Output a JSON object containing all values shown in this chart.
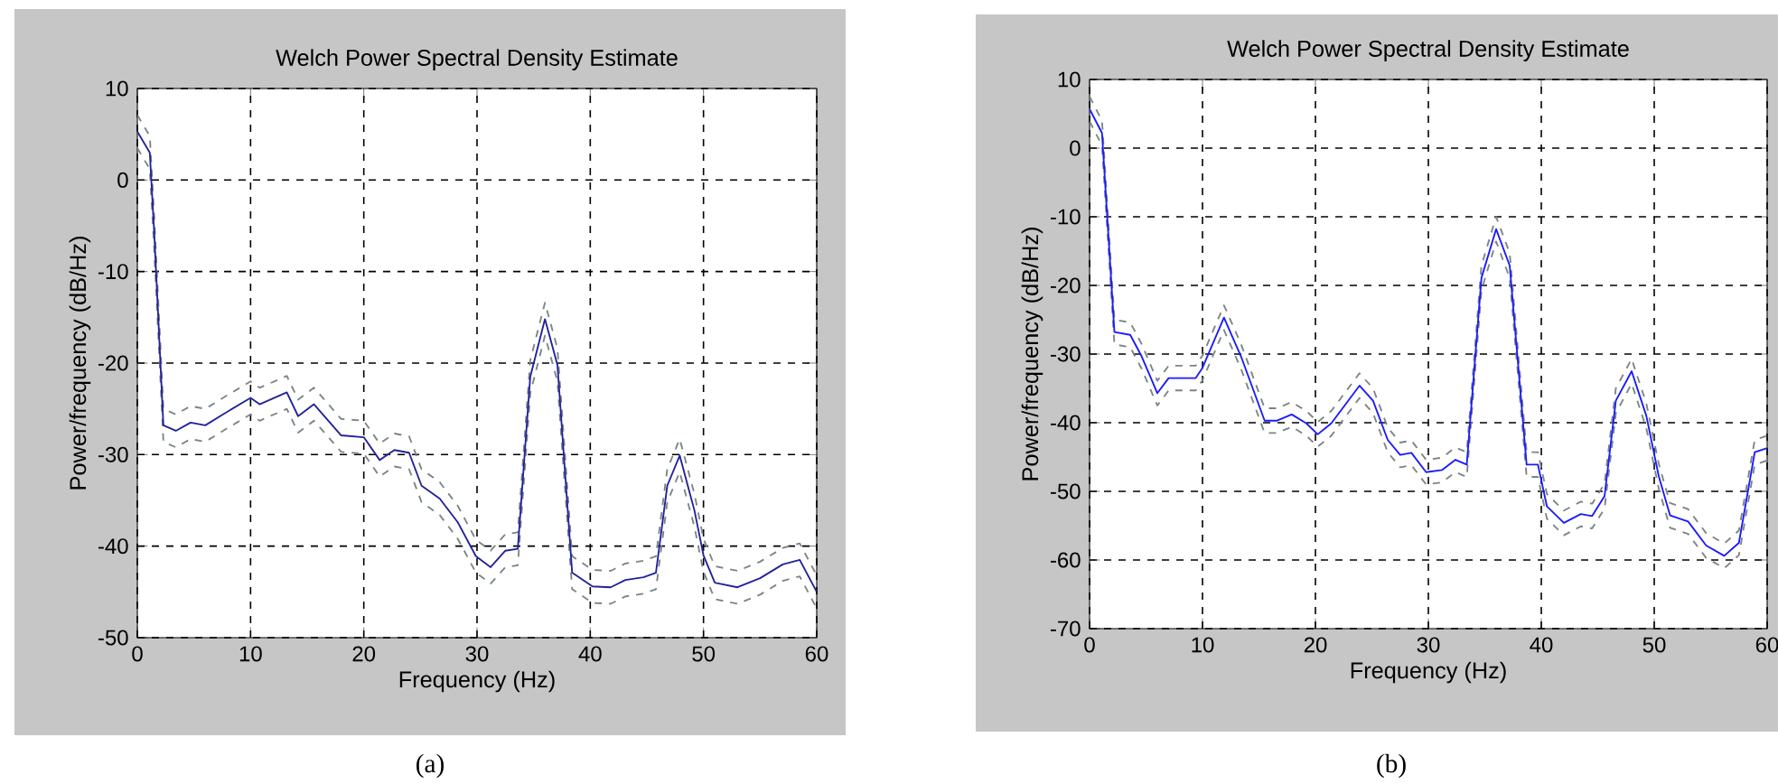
{
  "chart_data": [
    {
      "type": "line",
      "title": "Welch Power Spectral Density Estimate",
      "xlabel": "Frequency (Hz)",
      "ylabel": "Power/frequency (dB/Hz)",
      "annotations": [
        "(a)"
      ],
      "xlim": [
        0,
        60
      ],
      "ylim": [
        -50,
        10
      ],
      "xticks": [
        0,
        10,
        20,
        30,
        40,
        50,
        60
      ],
      "yticks": [
        -50,
        -40,
        -30,
        -20,
        -10,
        0,
        10
      ],
      "grid": true,
      "marker": "none",
      "x": [
        0,
        1.1,
        1.5,
        2.3,
        3.4,
        4.7,
        6,
        7.7,
        10,
        10.8,
        13.2,
        14.2,
        15.6,
        18,
        20,
        21.4,
        22.7,
        24,
        25.1,
        26.7,
        28.3,
        29.9,
        31.2,
        32.5,
        33.6,
        34.7,
        36,
        37.1,
        38.4,
        40.2,
        41.8,
        43.1,
        44.7,
        45.8,
        46.8,
        47.9,
        49.2,
        50,
        51,
        53,
        55,
        57,
        58.5,
        60
      ],
      "series": [
        {
          "color": "#7a8585",
          "line_style": "dashed",
          "values": [
            7.1,
            4.8,
            -4.2,
            -25,
            -25.6,
            -24.7,
            -25,
            -23.7,
            -22,
            -22.7,
            -21.4,
            -24,
            -22.7,
            -26.1,
            -26.3,
            -28.8,
            -27.7,
            -28,
            -31.6,
            -33,
            -35.6,
            -39.3,
            -40.5,
            -38.7,
            -38.5,
            -19.7,
            -13.4,
            -18.4,
            -41.1,
            -42.6,
            -42.7,
            -41.9,
            -41.6,
            -41.1,
            -31.6,
            -28.3,
            -34.3,
            -39.2,
            -42.2,
            -42.7,
            -41.7,
            -40.2,
            -39.7,
            -43.2
          ]
        },
        {
          "color": "#7a8585",
          "line_style": "dashed",
          "values": [
            3.5,
            1.2,
            -7.8,
            -28.6,
            -29.2,
            -28.3,
            -28.6,
            -27.3,
            -25.6,
            -26.3,
            -25,
            -27.6,
            -26.3,
            -29.7,
            -29.9,
            -32.4,
            -31.3,
            -31.6,
            -35.2,
            -36.6,
            -39.2,
            -42.9,
            -44.1,
            -42.3,
            -42.1,
            -23.3,
            -17,
            -22,
            -44.7,
            -46.2,
            -46.3,
            -45.5,
            -45.2,
            -44.7,
            -35.2,
            -31.9,
            -37.9,
            -42.8,
            -45.8,
            -46.3,
            -45.3,
            -43.8,
            -43.3,
            -46.8
          ]
        },
        {
          "color": "#22229a",
          "line_style": "solid",
          "values": [
            5.3,
            3,
            -6,
            -26.8,
            -27.4,
            -26.5,
            -26.8,
            -25.5,
            -23.8,
            -24.5,
            -23.2,
            -25.8,
            -24.5,
            -27.9,
            -28.1,
            -30.6,
            -29.5,
            -29.8,
            -33.4,
            -34.8,
            -37.4,
            -41.1,
            -42.3,
            -40.5,
            -40.3,
            -21.5,
            -15.2,
            -20.2,
            -42.9,
            -44.4,
            -44.5,
            -43.7,
            -43.4,
            -42.9,
            -33.4,
            -30.1,
            -36.1,
            -41,
            -44,
            -44.5,
            -43.5,
            -42,
            -41.5,
            -45
          ]
        }
      ]
    },
    {
      "type": "line",
      "title": "Welch Power Spectral Density Estimate",
      "xlabel": "Frequency (Hz)",
      "ylabel": "Power/frequency (dB/Hz)",
      "annotations": [
        "(b)"
      ],
      "xlim": [
        0,
        60
      ],
      "ylim": [
        -70,
        10
      ],
      "xticks": [
        0,
        10,
        20,
        30,
        40,
        50,
        60
      ],
      "yticks": [
        -70,
        -60,
        -50,
        -40,
        -30,
        -20,
        -10,
        0,
        10
      ],
      "grid": true,
      "marker": "none",
      "x": [
        0,
        1.1,
        2.2,
        3.6,
        4.6,
        6,
        7,
        9.4,
        10,
        11.9,
        13.4,
        15.5,
        16.6,
        17.9,
        19.2,
        20.2,
        21.4,
        23.9,
        25.1,
        26.4,
        27.5,
        28.5,
        29.8,
        31.2,
        32.4,
        33.4,
        34.7,
        36,
        37.2,
        38.7,
        39.7,
        40.5,
        42,
        43.5,
        44.5,
        45.6,
        46.6,
        48,
        49.3,
        50.4,
        51.4,
        53,
        54.6,
        56.2,
        57.5,
        58.9,
        60
      ],
      "series": [
        {
          "color": "#7a8585",
          "line_style": "dashed",
          "values": [
            7.5,
            4,
            -25,
            -25.4,
            -28.5,
            -33.9,
            -31.7,
            -31.7,
            -30.2,
            -22.9,
            -28.5,
            -37.9,
            -37.9,
            -37,
            -38.3,
            -39.9,
            -38.3,
            -32.8,
            -35,
            -40.7,
            -42.9,
            -42.6,
            -45.4,
            -45.1,
            -43.6,
            -44.3,
            -17.1,
            -10,
            -15.3,
            -44.3,
            -44.3,
            -50.4,
            -52.8,
            -51.5,
            -51.8,
            -48.9,
            -35,
            -30.7,
            -37.2,
            -46,
            -51.7,
            -52.6,
            -56.1,
            -57.6,
            -55.7,
            -42.5,
            -41.9
          ]
        },
        {
          "color": "#7a8585",
          "line_style": "dashed",
          "values": [
            3.9,
            0.4,
            -28.6,
            -29,
            -32.1,
            -37.5,
            -35.3,
            -35.3,
            -33.8,
            -26.5,
            -32.1,
            -41.5,
            -41.5,
            -40.6,
            -41.9,
            -43.5,
            -41.9,
            -36.4,
            -38.6,
            -44.3,
            -46.5,
            -46.2,
            -49,
            -48.7,
            -47.2,
            -47.9,
            -20.7,
            -13.6,
            -18.9,
            -47.9,
            -47.9,
            -54,
            -56.4,
            -55.1,
            -55.4,
            -52.5,
            -38.6,
            -34.3,
            -40.8,
            -49.6,
            -55.3,
            -56.2,
            -59.7,
            -61.2,
            -59.3,
            -46.1,
            -45.5
          ]
        },
        {
          "color": "#1a1aff",
          "line_style": "solid",
          "values": [
            5.7,
            2.2,
            -26.8,
            -27.2,
            -30.3,
            -35.7,
            -33.5,
            -33.5,
            -32,
            -24.7,
            -30.3,
            -39.7,
            -39.7,
            -38.8,
            -40.1,
            -41.7,
            -40.1,
            -34.6,
            -36.8,
            -42.5,
            -44.7,
            -44.4,
            -47.2,
            -46.9,
            -45.4,
            -46.1,
            -18.9,
            -11.8,
            -17.1,
            -46.1,
            -46.1,
            -52.2,
            -54.6,
            -53.3,
            -53.6,
            -50.7,
            -36.8,
            -32.5,
            -39,
            -47.8,
            -53.5,
            -54.4,
            -57.9,
            -59.4,
            -57.5,
            -44.3,
            -43.7
          ]
        }
      ]
    }
  ]
}
